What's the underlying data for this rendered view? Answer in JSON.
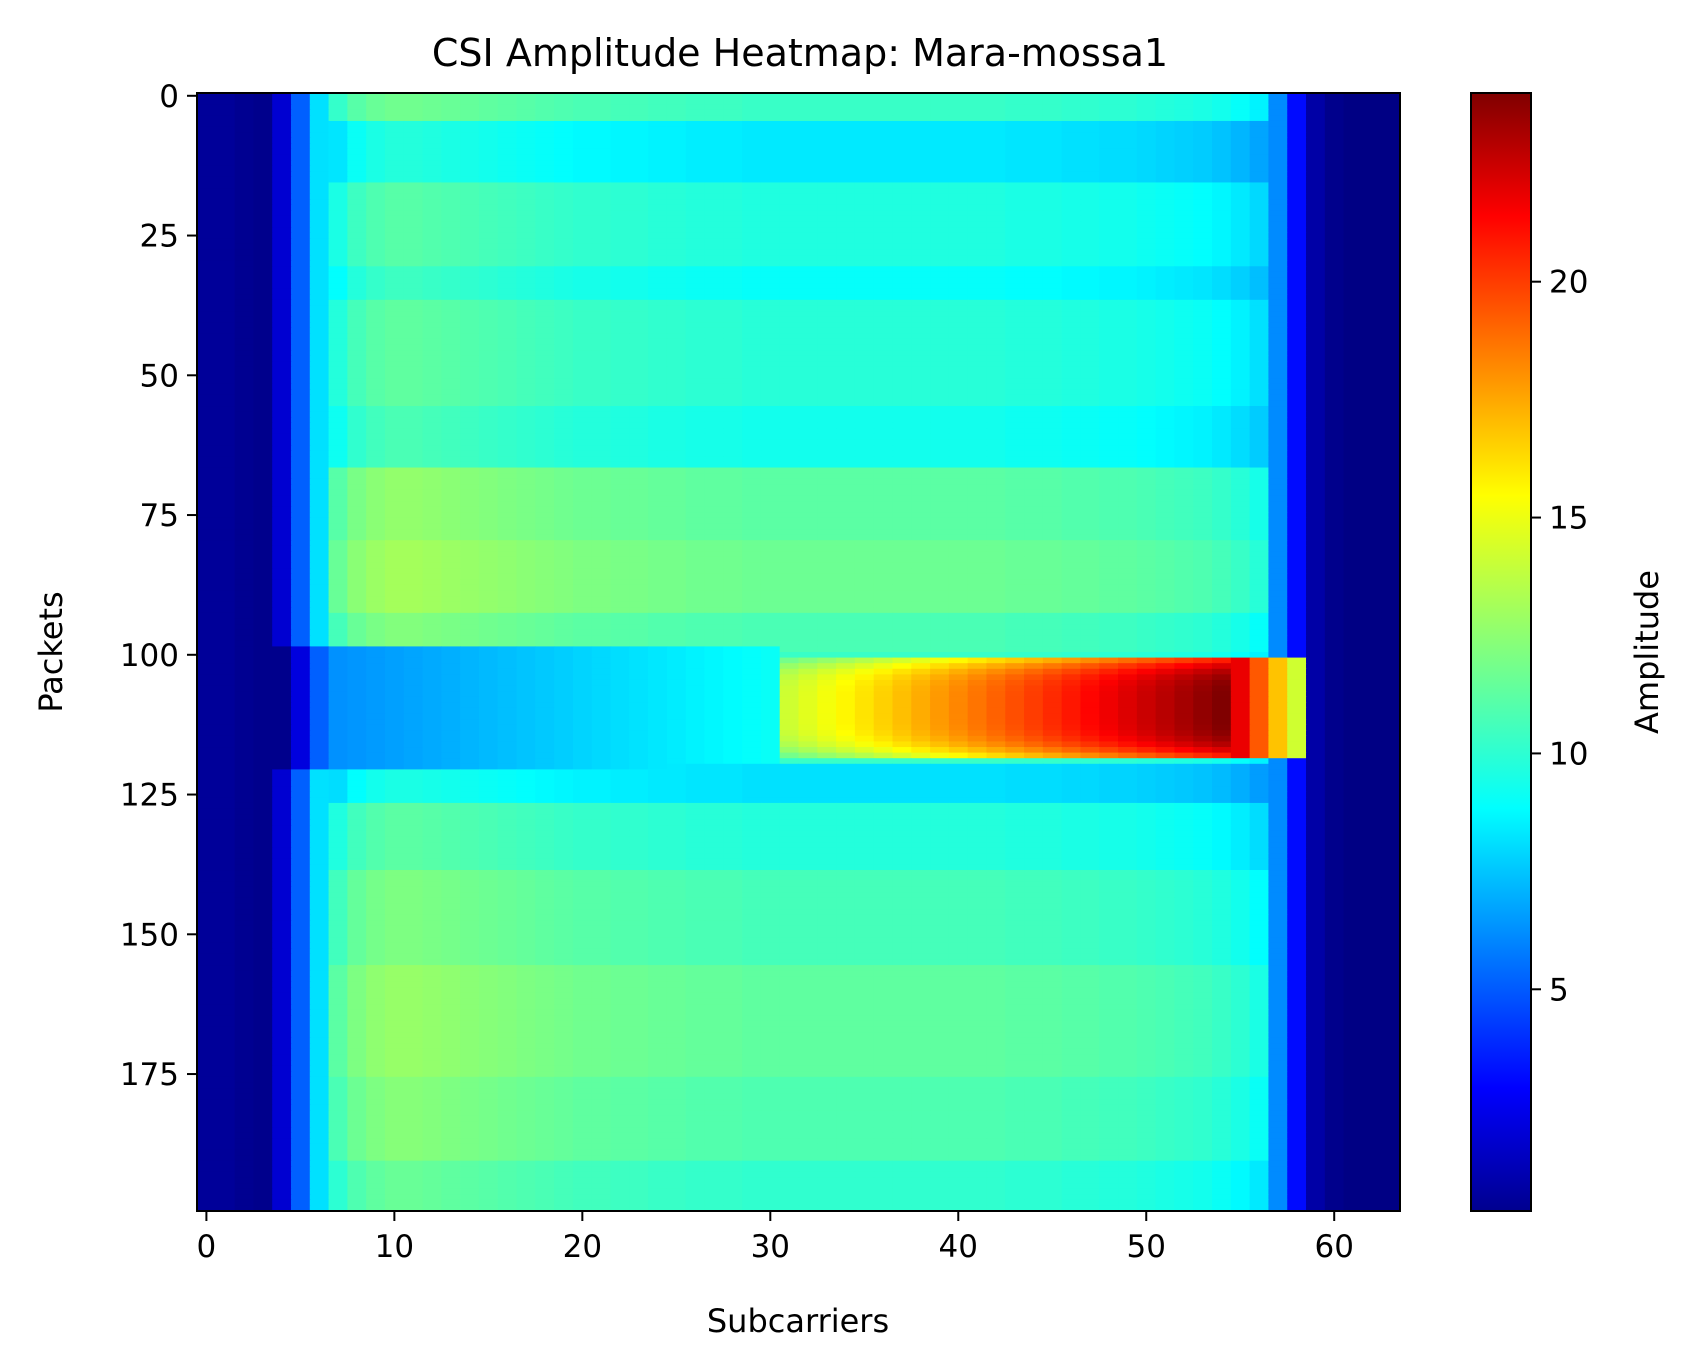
{
  "chart_data": {
    "type": "heatmap",
    "title": "CSI Amplitude Heatmap: Mara-mossa1",
    "xlabel": "Subcarriers",
    "ylabel": "Packets",
    "colorbar_label": "Amplitude",
    "colormap": "jet",
    "x_count": 64,
    "y_count": 200,
    "xlim": [
      -0.5,
      63.5
    ],
    "ylim": [
      199.5,
      -0.5
    ],
    "x_ticks": [
      0,
      10,
      20,
      30,
      40,
      50,
      60
    ],
    "y_ticks": [
      0,
      25,
      50,
      75,
      100,
      125,
      150,
      175
    ],
    "colorbar_ticks": [
      5,
      10,
      15,
      20
    ],
    "vmin": 0.3,
    "vmax": 24.0,
    "grid": false,
    "subcarrier_baseline_amplitude": [
      0.9,
      0.9,
      0.7,
      0.6,
      2.2,
      5.5,
      8.5,
      10.4,
      11.2,
      11.6,
      11.8,
      11.8,
      11.7,
      11.6,
      11.5,
      11.4,
      11.3,
      11.2,
      11.1,
      11.0,
      10.9,
      10.9,
      10.8,
      10.8,
      10.7,
      10.7,
      10.6,
      10.6,
      10.6,
      10.5,
      10.5,
      10.5,
      10.5,
      10.5,
      10.5,
      10.5,
      10.5,
      10.5,
      10.5,
      10.5,
      10.5,
      10.5,
      10.5,
      10.4,
      10.4,
      10.4,
      10.3,
      10.3,
      10.2,
      10.2,
      10.1,
      10.0,
      9.9,
      9.8,
      9.6,
      9.3,
      8.9,
      6.5,
      3.5,
      1.2,
      0.6,
      0.4,
      0.4,
      0.4
    ],
    "packet_row_offsets": [
      {
        "packets": [
          0,
          4
        ],
        "offset": 0.0
      },
      {
        "packets": [
          5,
          15
        ],
        "offset": -1.8
      },
      {
        "packets": [
          16,
          30
        ],
        "offset": -0.6
      },
      {
        "packets": [
          31,
          36
        ],
        "offset": -1.2
      },
      {
        "packets": [
          37,
          55
        ],
        "offset": -0.4
      },
      {
        "packets": [
          56,
          66
        ],
        "offset": -0.9
      },
      {
        "packets": [
          67,
          79
        ],
        "offset": 0.8
      },
      {
        "packets": [
          80,
          92
        ],
        "offset": 1.2
      },
      {
        "packets": [
          93,
          99
        ],
        "offset": 0.4
      },
      {
        "packets": [
          120,
          126
        ],
        "offset": -2.0
      },
      {
        "packets": [
          127,
          138
        ],
        "offset": -0.5
      },
      {
        "packets": [
          139,
          155
        ],
        "offset": 0.3
      },
      {
        "packets": [
          156,
          175
        ],
        "offset": 0.9
      },
      {
        "packets": [
          176,
          190
        ],
        "offset": 0.5
      },
      {
        "packets": [
          191,
          199
        ],
        "offset": -0.2
      }
    ],
    "hotspot": {
      "packets": [
        101,
        118
      ],
      "subcarriers": [
        31,
        58
      ],
      "start_amplitude": 14.0,
      "peak_amplitude": 24.0,
      "peak_subcarrier": 54
    },
    "dip_band": {
      "packets": [
        99,
        120
      ],
      "subcarriers": [
        0,
        30
      ],
      "amplitude": 6.5
    }
  }
}
